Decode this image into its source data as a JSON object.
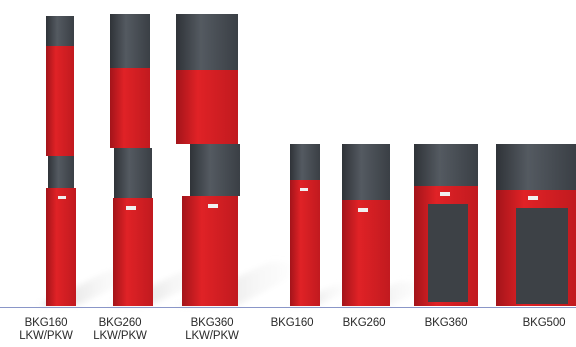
{
  "image": {
    "description_id": "product-lineup",
    "colors": {
      "body": "#d81e22",
      "body_dark": "#a3141a",
      "head": "#4a4f55",
      "head_dark": "#2f3338",
      "panel": "#3d4146",
      "shadow": "#d9d9d9"
    }
  },
  "products": [
    {
      "id": "bkg160-lkw",
      "label": "BKG160\nLKW/PKW"
    },
    {
      "id": "bkg260-lkw",
      "label": "BKG260\nLKW/PKW"
    },
    {
      "id": "bkg360-lkw",
      "label": "BKG360\nLKW/PKW"
    },
    {
      "id": "bkg160",
      "label": "BKG160"
    },
    {
      "id": "bkg260",
      "label": "BKG260"
    },
    {
      "id": "bkg360",
      "label": "BKG360"
    },
    {
      "id": "bkg500",
      "label": "BKG500"
    }
  ]
}
